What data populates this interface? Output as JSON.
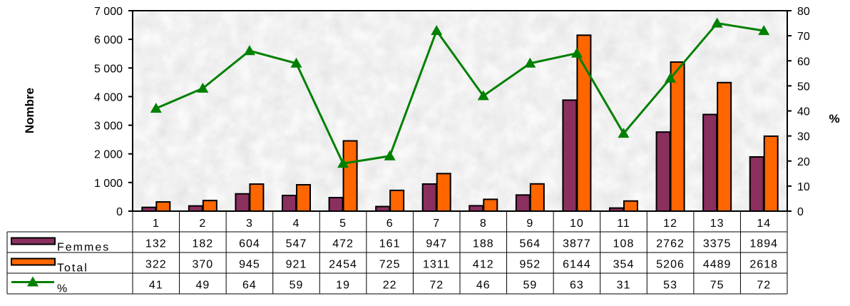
{
  "chart_data": {
    "type": "bar",
    "categories": [
      "1",
      "2",
      "3",
      "4",
      "5",
      "6",
      "7",
      "8",
      "9",
      "10",
      "11",
      "12",
      "13",
      "14"
    ],
    "series": [
      {
        "name": "Femmes",
        "type": "bar",
        "axis": "left",
        "color": "#8B2F5F",
        "values": [
          132,
          182,
          604,
          547,
          472,
          161,
          947,
          188,
          564,
          3877,
          108,
          2762,
          3375,
          1894
        ]
      },
      {
        "name": "Total",
        "type": "bar",
        "axis": "left",
        "color": "#FF6600",
        "values": [
          322,
          370,
          945,
          921,
          2454,
          725,
          1311,
          412,
          952,
          6144,
          354,
          5206,
          4489,
          2618
        ]
      },
      {
        "name": "%",
        "type": "line",
        "axis": "right",
        "color": "#008000",
        "marker": "triangle",
        "values": [
          41,
          49,
          64,
          59,
          19,
          22,
          72,
          46,
          59,
          63,
          31,
          53,
          75,
          72
        ]
      }
    ],
    "ylabel": "Nombre",
    "y2label": "%",
    "ylim": [
      0,
      7000
    ],
    "y2lim": [
      0,
      80
    ],
    "yticks": [
      "0",
      "1 000",
      "2 000",
      "3 000",
      "4 000",
      "5 000",
      "6 000",
      "7 000"
    ],
    "y2ticks": [
      "0",
      "10",
      "20",
      "30",
      "40",
      "50",
      "60",
      "70",
      "80"
    ],
    "data_table": true,
    "plot_background": "#e6e6e6"
  }
}
